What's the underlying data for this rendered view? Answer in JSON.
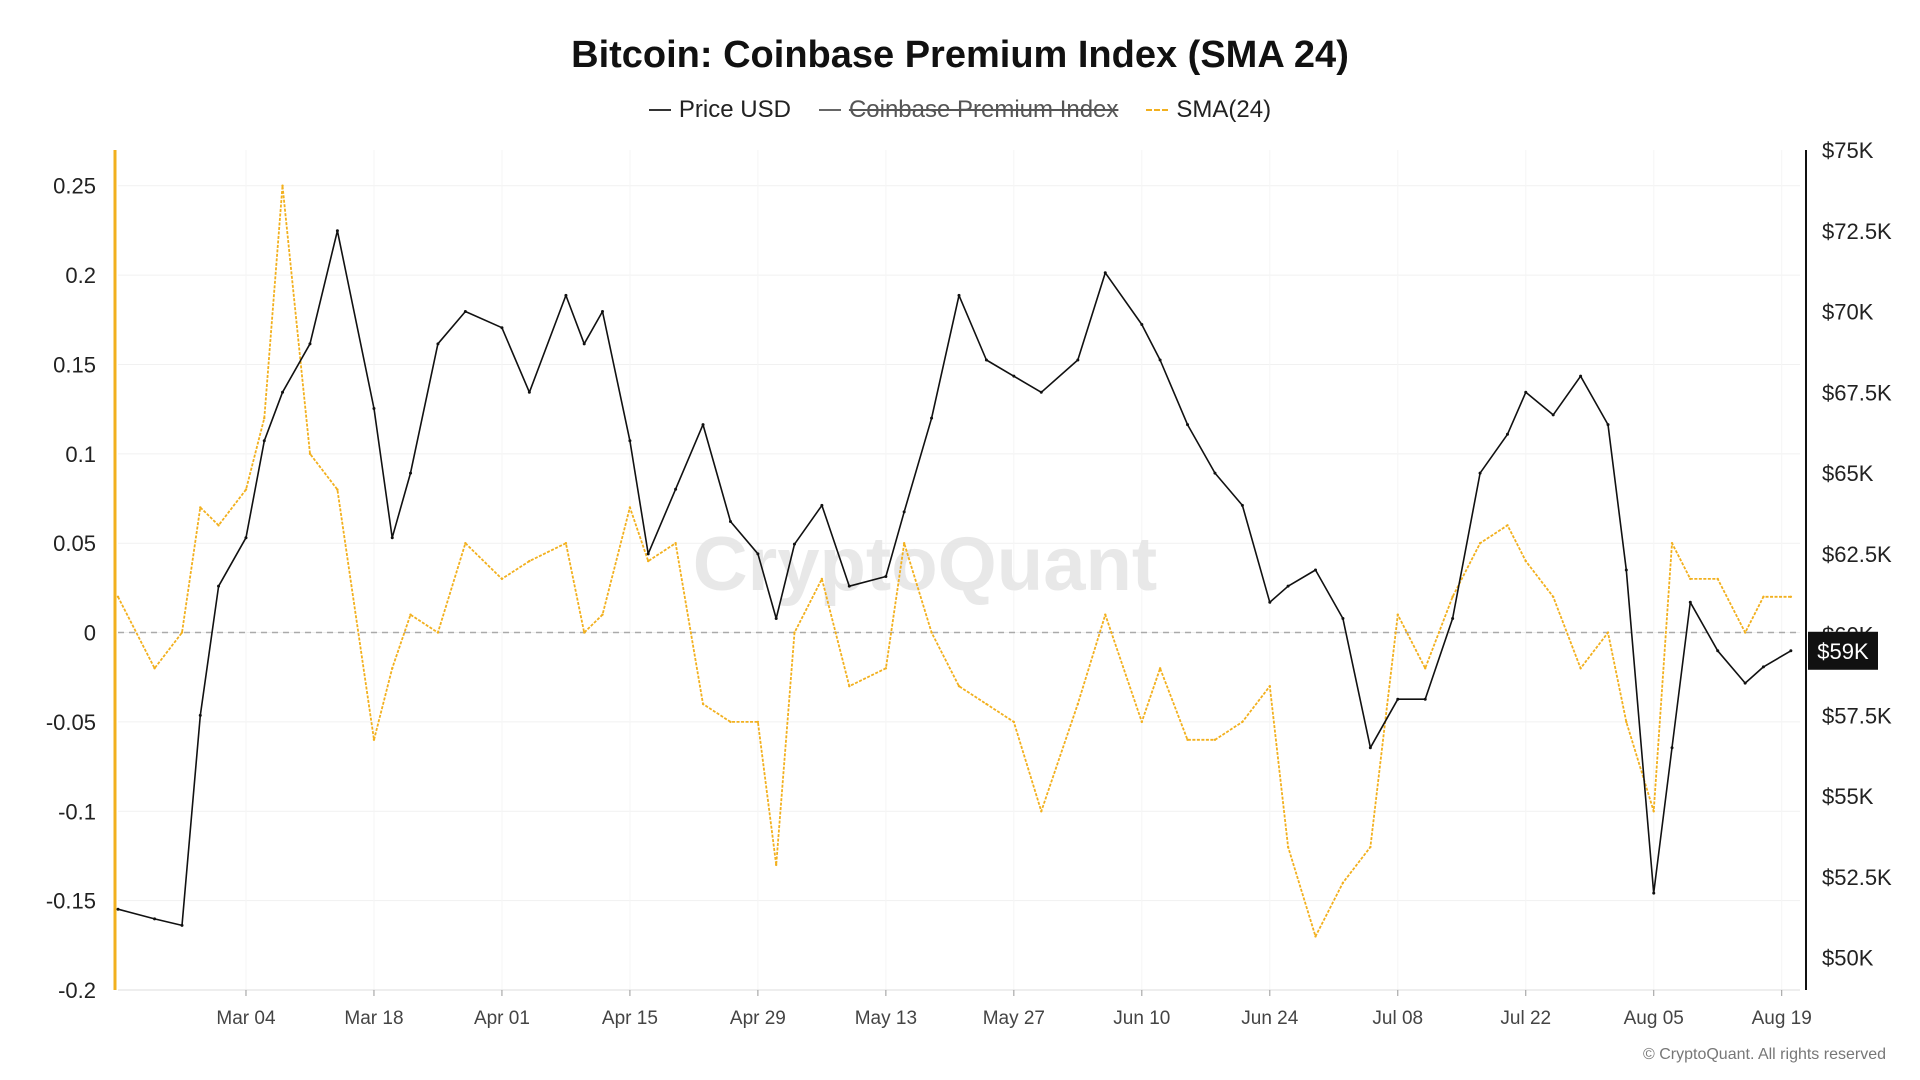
{
  "title": "Bitcoin: Coinbase Premium Index (SMA 24)",
  "legend": [
    {
      "label": "Price USD",
      "color": "#333333",
      "enabled": true
    },
    {
      "label": "Coinbase Premium Index",
      "color": "#555555",
      "enabled": false
    },
    {
      "label": "SMA(24)",
      "color": "#f2b01e",
      "enabled": true
    }
  ],
  "watermark": "CryptoQuant",
  "footer": "© CryptoQuant. All rights reserved",
  "current_price_label": "$59K",
  "chart_data": {
    "type": "line",
    "grid": true,
    "x": [
      "2024-02-19",
      "2024-02-23",
      "2024-02-26",
      "2024-02-28",
      "2024-03-01",
      "2024-03-04",
      "2024-03-06",
      "2024-03-08",
      "2024-03-11",
      "2024-03-14",
      "2024-03-18",
      "2024-03-20",
      "2024-03-22",
      "2024-03-25",
      "2024-03-28",
      "2024-04-01",
      "2024-04-04",
      "2024-04-08",
      "2024-04-10",
      "2024-04-12",
      "2024-04-15",
      "2024-04-17",
      "2024-04-20",
      "2024-04-23",
      "2024-04-26",
      "2024-04-29",
      "2024-05-01",
      "2024-05-03",
      "2024-05-06",
      "2024-05-09",
      "2024-05-13",
      "2024-05-15",
      "2024-05-18",
      "2024-05-21",
      "2024-05-24",
      "2024-05-27",
      "2024-05-30",
      "2024-06-03",
      "2024-06-06",
      "2024-06-10",
      "2024-06-12",
      "2024-06-15",
      "2024-06-18",
      "2024-06-21",
      "2024-06-24",
      "2024-06-26",
      "2024-06-29",
      "2024-07-02",
      "2024-07-05",
      "2024-07-08",
      "2024-07-11",
      "2024-07-14",
      "2024-07-17",
      "2024-07-20",
      "2024-07-22",
      "2024-07-25",
      "2024-07-28",
      "2024-07-31",
      "2024-08-02",
      "2024-08-05",
      "2024-08-07",
      "2024-08-09",
      "2024-08-12",
      "2024-08-15",
      "2024-08-17",
      "2024-08-20"
    ],
    "x_ticks": [
      "Mar 04",
      "Mar 18",
      "Apr 01",
      "Apr 15",
      "Apr 29",
      "May 13",
      "May 27",
      "Jun 10",
      "Jun 24",
      "Jul 08",
      "Jul 22",
      "Aug 05",
      "Aug 19"
    ],
    "x_tick_dates": [
      "2024-03-04",
      "2024-03-18",
      "2024-04-01",
      "2024-04-15",
      "2024-04-29",
      "2024-05-13",
      "2024-05-27",
      "2024-06-10",
      "2024-06-24",
      "2024-07-08",
      "2024-07-22",
      "2024-08-05",
      "2024-08-19"
    ],
    "xlim": [
      "2024-02-19",
      "2024-08-21"
    ],
    "y_left": {
      "ticks": [
        0.25,
        0.2,
        0.15,
        0.1,
        0.05,
        0,
        -0.05,
        -0.1,
        -0.15,
        -0.2
      ],
      "ylim": [
        -0.2,
        0.27
      ],
      "zero_line": true
    },
    "y_right": {
      "ticks": [
        "$75K",
        "$72.5K",
        "$70K",
        "$67.5K",
        "$65K",
        "$62.5K",
        "$60K",
        "$57.5K",
        "$55K",
        "$52.5K",
        "$50K"
      ],
      "tick_values": [
        75000,
        72500,
        70000,
        67500,
        65000,
        62500,
        60000,
        57500,
        55000,
        52500,
        50000
      ],
      "ylim": [
        49000,
        75000
      ]
    },
    "series": [
      {
        "name": "Price USD",
        "axis": "right",
        "values": [
          51500,
          51200,
          51000,
          57500,
          61500,
          63000,
          66000,
          67500,
          69000,
          72500,
          67000,
          63000,
          65000,
          69000,
          70000,
          69500,
          67500,
          70500,
          69000,
          70000,
          66000,
          62500,
          64500,
          66500,
          63500,
          62500,
          60500,
          62800,
          64000,
          61500,
          61800,
          63800,
          66700,
          70500,
          68500,
          68000,
          67500,
          68500,
          71200,
          69600,
          68500,
          66500,
          65000,
          64000,
          61000,
          61500,
          62000,
          60500,
          56500,
          58000,
          58000,
          60500,
          65000,
          66200,
          67500,
          66800,
          68000,
          66500,
          62000,
          52000,
          56500,
          61000,
          59500,
          58500,
          59000,
          59500
        ]
      },
      {
        "name": "SMA(24)",
        "axis": "left",
        "values": [
          0.02,
          -0.02,
          0.0,
          0.07,
          0.06,
          0.08,
          0.12,
          0.25,
          0.1,
          0.08,
          -0.06,
          -0.02,
          0.01,
          0.0,
          0.05,
          0.03,
          0.04,
          0.05,
          0.0,
          0.01,
          0.07,
          0.04,
          0.05,
          -0.04,
          -0.05,
          -0.05,
          -0.13,
          0.0,
          0.03,
          -0.03,
          -0.02,
          0.05,
          0.0,
          -0.03,
          -0.04,
          -0.05,
          -0.1,
          -0.04,
          0.01,
          -0.05,
          -0.02,
          -0.06,
          -0.06,
          -0.05,
          -0.03,
          -0.12,
          -0.17,
          -0.14,
          -0.12,
          0.01,
          -0.02,
          0.02,
          0.05,
          0.06,
          0.04,
          0.02,
          -0.02,
          0.0,
          -0.05,
          -0.1,
          0.05,
          0.03,
          0.03,
          0.0,
          0.02,
          0.02
        ]
      }
    ]
  }
}
